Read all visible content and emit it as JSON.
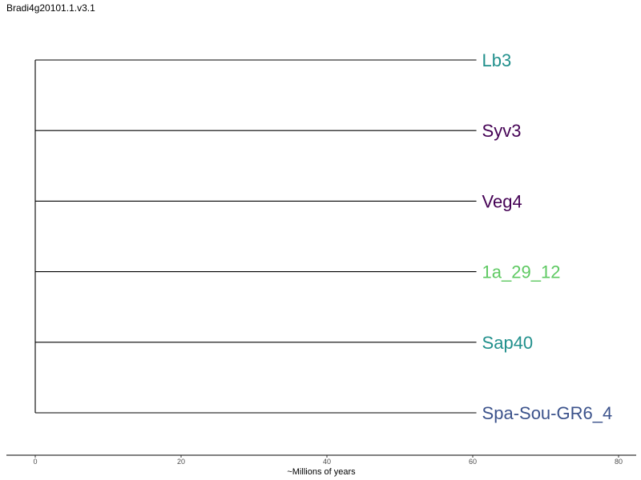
{
  "title": "Bradi4g20101.1.v3.1",
  "chart_data": {
    "type": "tree",
    "title": "Bradi4g20101.1.v3.1",
    "xlabel": "~Millions of years",
    "xlim": [
      0,
      80
    ],
    "x_ticks": [
      0,
      20,
      40,
      60,
      80
    ],
    "x_tick_labels": [
      "0",
      "20",
      "40",
      "60",
      "80"
    ],
    "root_age": 0,
    "tips": [
      {
        "label": "Lb3",
        "x": 60.5,
        "color": "#21908c"
      },
      {
        "label": "Syv3",
        "x": 60.5,
        "color": "#440154"
      },
      {
        "label": "Veg4",
        "x": 60.5,
        "color": "#440154"
      },
      {
        "label": "1a_29_12",
        "x": 60.5,
        "color": "#5ec962"
      },
      {
        "label": "Sap40",
        "x": 60.5,
        "color": "#21908c"
      },
      {
        "label": "Spa-Sou-GR6_4",
        "x": 60.5,
        "color": "#3b528b"
      }
    ]
  }
}
